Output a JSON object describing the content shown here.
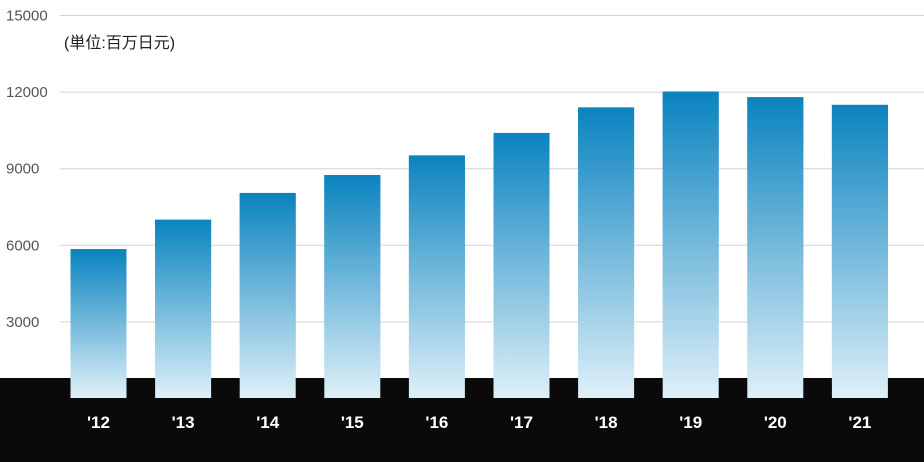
{
  "chart_data": {
    "type": "bar",
    "title": "",
    "unit_label": "(単位:百万日元)",
    "categories": [
      "'12",
      "'13",
      "'14",
      "'15",
      "'16",
      "'17",
      "'18",
      "'19",
      "'20",
      "'21"
    ],
    "values": [
      5850,
      7000,
      8050,
      8750,
      9520,
      10400,
      11400,
      12020,
      11800,
      11500
    ],
    "ylim": [
      0,
      15000
    ],
    "yticks": [
      3000,
      6000,
      9000,
      12000,
      15000
    ],
    "grid": true,
    "legend": "none"
  },
  "colors": {
    "bar_top": "#0a83bf",
    "bar_bottom": "#dff0f8",
    "axis_band": "#0b0a0a",
    "grid": "#d4d4d4",
    "tick_text": "#555555",
    "category_text": "#ffffff"
  }
}
